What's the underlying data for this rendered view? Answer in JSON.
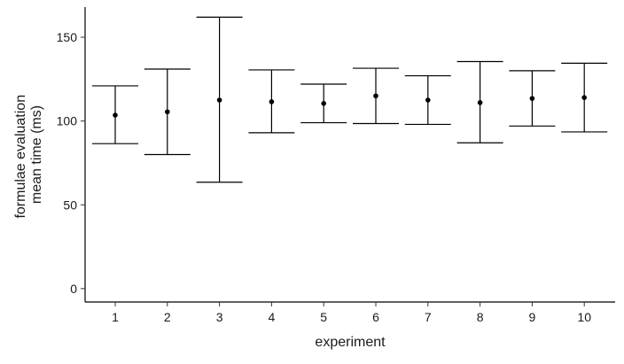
{
  "chart_data": {
    "type": "errorbar",
    "xlabel": "experiment",
    "ylabel": [
      "formulae evaluation",
      "mean time (ms)"
    ],
    "ylim": [
      -8,
      168
    ],
    "yticks": [
      0,
      50,
      100,
      150
    ],
    "grid": false,
    "legend": "none",
    "points": [
      {
        "x": 1,
        "mean": 103.5,
        "lower": 86.5,
        "upper": 121
      },
      {
        "x": 2,
        "mean": 105.5,
        "lower": 80,
        "upper": 131
      },
      {
        "x": 3,
        "mean": 112.5,
        "lower": 63.5,
        "upper": 162
      },
      {
        "x": 4,
        "mean": 111.5,
        "lower": 93,
        "upper": 130.5
      },
      {
        "x": 5,
        "mean": 110.5,
        "lower": 99,
        "upper": 122
      },
      {
        "x": 6,
        "mean": 115,
        "lower": 98.5,
        "upper": 131.5
      },
      {
        "x": 7,
        "mean": 112.5,
        "lower": 98,
        "upper": 127
      },
      {
        "x": 8,
        "mean": 111,
        "lower": 87,
        "upper": 135.5
      },
      {
        "x": 9,
        "mean": 113.5,
        "lower": 97,
        "upper": 130
      },
      {
        "x": 10,
        "mean": 114,
        "lower": 93.5,
        "upper": 134.5
      }
    ]
  }
}
